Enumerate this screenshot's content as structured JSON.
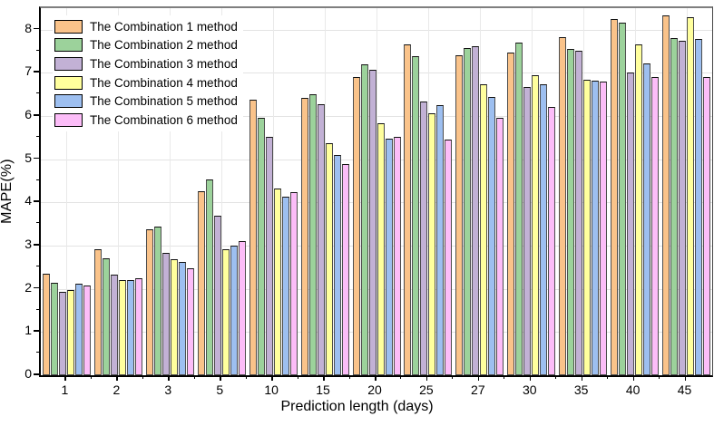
{
  "chart_data": {
    "type": "bar",
    "title": "",
    "xlabel": "Prediction length (days)",
    "ylabel": "MAPE(%)",
    "categories": [
      "1",
      "2",
      "3",
      "5",
      "10",
      "15",
      "20",
      "25",
      "27",
      "30",
      "35",
      "40",
      "45"
    ],
    "series": [
      {
        "name": "The Combination 1 method",
        "color": "#FAC38A",
        "values": [
          2.35,
          2.92,
          3.38,
          4.26,
          6.38,
          6.43,
          6.9,
          7.67,
          7.4,
          7.48,
          7.83,
          8.25,
          8.33
        ]
      },
      {
        "name": "The Combination 2 method",
        "color": "#9CD29B",
        "values": [
          2.14,
          2.71,
          3.44,
          4.53,
          5.97,
          6.5,
          7.2,
          7.39,
          7.58,
          7.7,
          7.55,
          8.16,
          7.81
        ]
      },
      {
        "name": "The Combination 3 method",
        "color": "#C2B1D5",
        "values": [
          1.93,
          2.33,
          2.83,
          3.7,
          5.51,
          6.28,
          7.08,
          6.33,
          7.61,
          6.67,
          7.52,
          7.01,
          7.74
        ]
      },
      {
        "name": "The Combination 4 method",
        "color": "#FFFF9D",
        "values": [
          1.97,
          2.2,
          2.69,
          2.91,
          4.33,
          5.38,
          5.84,
          6.07,
          6.73,
          6.94,
          6.85,
          7.66,
          8.3
        ]
      },
      {
        "name": "The Combination 5 method",
        "color": "#9DBFF0",
        "values": [
          2.11,
          2.2,
          2.62,
          3.0,
          4.13,
          5.1,
          5.48,
          6.26,
          6.45,
          6.73,
          6.82,
          7.23,
          7.79
        ]
      },
      {
        "name": "The Combination 6 method",
        "color": "#FCBDF8",
        "values": [
          2.08,
          2.25,
          2.48,
          3.11,
          4.24,
          4.9,
          5.51,
          5.45,
          5.96,
          6.22,
          6.8,
          6.9,
          6.91
        ]
      }
    ],
    "ylim": [
      0,
      8.5
    ],
    "yticks_major": [
      0,
      1,
      2,
      3,
      4,
      5,
      6,
      7,
      8
    ],
    "ytick_minor_step": 0.5,
    "grid": true,
    "legend_position": "top-left"
  }
}
